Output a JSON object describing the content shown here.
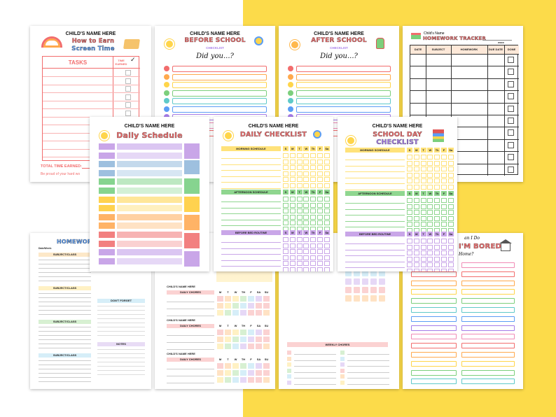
{
  "page1": {
    "name": "CHILD'S NAME HERE",
    "title_line1": "How to Earn",
    "title_line2": "Screen Time",
    "col_tasks": "TASKS",
    "col_time": "TIME EARNED",
    "total": "TOTAL TIME EARNED:",
    "note": "Be proud of your hard wo"
  },
  "page2": {
    "name": "CHILD'S NAME HERE",
    "title": "BEFORE SCHOOL",
    "subtitle": "CHECKLIST",
    "prompt": "Did you...?"
  },
  "page3": {
    "name": "CHILD'S NAME HERE",
    "title": "AFTER SCHOOL",
    "subtitle": "CHECKLIST",
    "prompt": "Did you...?"
  },
  "page4": {
    "name": "Child's Name",
    "title": "HOMEWORK TRACKER",
    "week": "WEEK",
    "cols": [
      "DATE",
      "SUBJECT",
      "HOMEWORK",
      "DUE DATE",
      "DONE"
    ]
  },
  "page5": {
    "name": "CHILD'S NAME HERE",
    "title": "Daily Schedule"
  },
  "page6": {
    "name": "CHILD'S NAME HERE",
    "title": "DAILY CHECKLIST",
    "sections": [
      "MORNING SCHEDULE",
      "AFTERNOON SCHEDULE",
      "BEFORE BED ROUTINE"
    ],
    "days": [
      "S",
      "M",
      "T",
      "W",
      "Th",
      "F",
      "Sa"
    ]
  },
  "page7": {
    "name": "CHILD'S NAME HERE",
    "title_line1": "SCHOOL DAY",
    "title_line2": "CHECKLIST",
    "sections": [
      "MORNING SCHEDULE",
      "AFTERNOON SCHEDULE",
      "BEFORE BED ROUTINE"
    ],
    "days": [
      "S",
      "M",
      "T",
      "W",
      "Th",
      "F",
      "Sa"
    ]
  },
  "page8": {
    "title": "HOMEWOR",
    "date": "Date/Week:",
    "subject": "SUBJECT/CLASS",
    "dont_forget": "DON'T FORGET",
    "notes": "NOTES"
  },
  "page9": {
    "name": "CHILD'S NAME HERE",
    "chores": "DAILY CHORES",
    "days": [
      "M",
      "T",
      "W",
      "TH",
      "F",
      "SA",
      "SU"
    ]
  },
  "page10": {
    "weekly": "WEEKLY CHORES"
  },
  "page11": {
    "line1": "an I Do",
    "line2": "I'M BORED",
    "line3": "Home?"
  },
  "colors": {
    "background": "#fcdb4a",
    "red": "#f26d6d",
    "orange": "#ffa94d",
    "yellow": "#ffd54a",
    "green": "#7ccf7c",
    "teal": "#5fc9c9",
    "blue": "#5b9df5",
    "purple": "#a67ce8",
    "pink": "#f08bb5"
  }
}
